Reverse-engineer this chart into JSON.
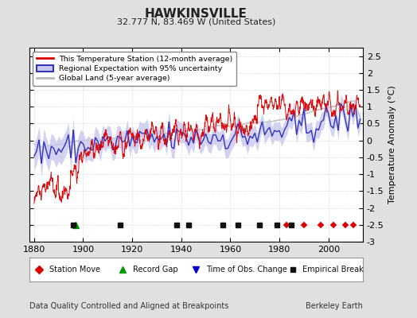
{
  "title": "HAWKINSVILLE",
  "subtitle": "32.777 N, 83.469 W (United States)",
  "ylabel": "Temperature Anomaly (°C)",
  "xlabel_note": "Data Quality Controlled and Aligned at Breakpoints",
  "source_note": "Berkeley Earth",
  "year_start": 1880,
  "year_end": 2013,
  "ylim": [
    -3.0,
    2.75
  ],
  "yticks": [
    -3,
    -2.5,
    -2,
    -1.5,
    -1,
    -0.5,
    0,
    0.5,
    1,
    1.5,
    2,
    2.5
  ],
  "xticks": [
    1880,
    1900,
    1920,
    1940,
    1960,
    1980,
    2000
  ],
  "bg_color": "#e0e0e0",
  "plot_bg_color": "#ffffff",
  "station_color": "#dd0000",
  "regional_color": "#3333bb",
  "regional_fill_color": "#c8c8ee",
  "global_color": "#bbbbbb",
  "legend_station": "This Temperature Station (12-month average)",
  "legend_regional": "Regional Expectation with 95% uncertainty",
  "legend_global": "Global Land (5-year average)",
  "marker_station_move_color": "#dd0000",
  "marker_record_gap_color": "#009900",
  "marker_obs_change_color": "#0000cc",
  "marker_empirical_color": "#111111",
  "label_station_move": "Station Move",
  "label_record_gap": "Record Gap",
  "label_obs_change": "Time of Obs. Change",
  "label_empirical": "Empirical Break",
  "station_moves": [
    1983,
    1990,
    1997,
    2002,
    2007,
    2010
  ],
  "record_gaps": [
    1897
  ],
  "obs_changes": [],
  "empirical_breaks": [
    1896,
    1915,
    1938,
    1943,
    1957,
    1963,
    1972,
    1979,
    1985
  ]
}
